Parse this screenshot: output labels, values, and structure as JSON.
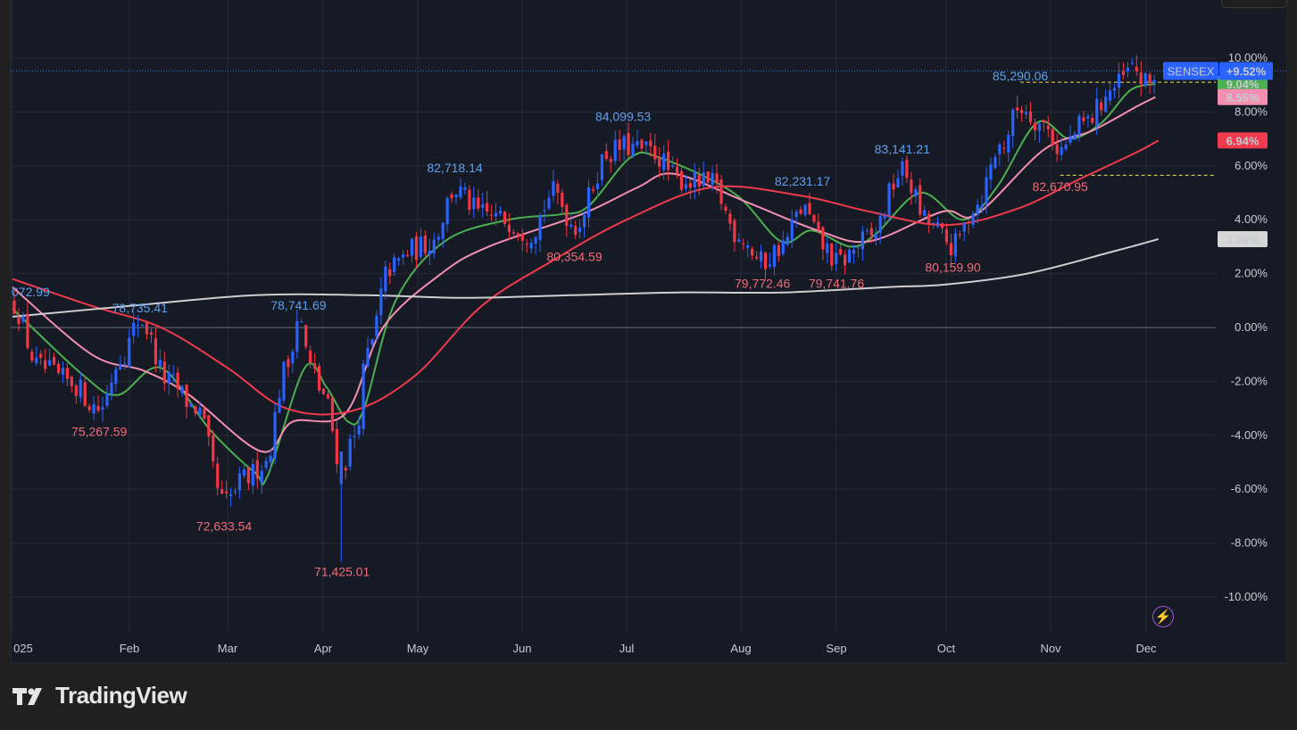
{
  "brand": {
    "name": "TradingView"
  },
  "symbol": {
    "name": "SENSEX",
    "change": "+9.52%"
  },
  "colors": {
    "background": "#161a25",
    "frame": "#202020",
    "grid": "#262b36",
    "up": "#2962ff",
    "down": "#f23645",
    "ma_green": "#4caf50",
    "ma_pink": "#f48fb1",
    "ma_red": "#ef3b4d",
    "ma_gray": "#cfcfcf",
    "hi_label": "#5ea0f0",
    "lo_label": "#f06c78"
  },
  "chart_data": {
    "type": "candlestick",
    "y_unit": "%",
    "ylim": [
      -11.5,
      11
    ],
    "y_ticks": [
      "10.00%",
      "8.00%",
      "6.00%",
      "4.00%",
      "2.00%",
      "0.00%",
      "-2.00%",
      "-4.00%",
      "-6.00%",
      "-8.00%",
      "-10.00%"
    ],
    "x_ticks": [
      "2025",
      "Feb",
      "Mar",
      "Apr",
      "May",
      "Jun",
      "Jul",
      "Aug",
      "Sep",
      "Oct",
      "Nov",
      "Dec"
    ],
    "price_anchors": [
      {
        "date": "Jan 01",
        "pct": 0.9
      },
      {
        "date": "Jan 08",
        "pct": -1.5
      },
      {
        "date": "Jan 16",
        "pct": -2.0
      },
      {
        "date": "Jan 24",
        "pct": -3.0
      },
      {
        "date": "Jan 30",
        "pct": -1.0
      },
      {
        "date": "Feb 04",
        "pct": 0.3
      },
      {
        "date": "Feb 12",
        "pct": -2.0
      },
      {
        "date": "Feb 20",
        "pct": -3.0
      },
      {
        "date": "Feb 28",
        "pct": -6.5
      },
      {
        "date": "Mar 07",
        "pct": -5.6
      },
      {
        "date": "Mar 13",
        "pct": -5.0
      },
      {
        "date": "Mar 20",
        "pct": -1.5
      },
      {
        "date": "Mar 24",
        "pct": 0.4
      },
      {
        "date": "Mar 28",
        "pct": -1.5
      },
      {
        "date": "Apr 01",
        "pct": -2.5
      },
      {
        "date": "Apr 07",
        "pct": -5.2
      },
      {
        "date": "Apr 11",
        "pct": -4.0
      },
      {
        "date": "Apr 15",
        "pct": -1.0
      },
      {
        "date": "Apr 22",
        "pct": 2.2
      },
      {
        "date": "Apr 30",
        "pct": 2.9
      },
      {
        "date": "May 05",
        "pct": 3.2
      },
      {
        "date": "May 12",
        "pct": 5.1
      },
      {
        "date": "May 20",
        "pct": 4.2
      },
      {
        "date": "May 27",
        "pct": 4.0
      },
      {
        "date": "Jun 03",
        "pct": 3.5
      },
      {
        "date": "Jun 10",
        "pct": 5.0
      },
      {
        "date": "Jun 16",
        "pct": 3.8
      },
      {
        "date": "Jun 26",
        "pct": 6.5
      },
      {
        "date": "Jun 30",
        "pct": 6.7
      },
      {
        "date": "Jul 08",
        "pct": 6.5
      },
      {
        "date": "Jul 15",
        "pct": 5.5
      },
      {
        "date": "Jul 24",
        "pct": 5.3
      },
      {
        "date": "Jul 31",
        "pct": 3.5
      },
      {
        "date": "Aug 08",
        "pct": 2.4
      },
      {
        "date": "Aug 14",
        "pct": 3.0
      },
      {
        "date": "Aug 21",
        "pct": 4.4
      },
      {
        "date": "Aug 28",
        "pct": 3.0
      },
      {
        "date": "Sep 01",
        "pct": 2.4
      },
      {
        "date": "Sep 10",
        "pct": 3.3
      },
      {
        "date": "Sep 19",
        "pct": 5.8
      },
      {
        "date": "Sep 26",
        "pct": 3.9
      },
      {
        "date": "Oct 03",
        "pct": 3.0
      },
      {
        "date": "Oct 10",
        "pct": 4.6
      },
      {
        "date": "Oct 17",
        "pct": 6.7
      },
      {
        "date": "Oct 23",
        "pct": 8.2
      },
      {
        "date": "Oct 30",
        "pct": 7.5
      },
      {
        "date": "Nov 04",
        "pct": 6.6
      },
      {
        "date": "Nov 12",
        "pct": 7.6
      },
      {
        "date": "Nov 20",
        "pct": 8.8
      },
      {
        "date": "Nov 27",
        "pct": 9.6
      },
      {
        "date": "Dec 01",
        "pct": 9.0
      },
      {
        "date": "Dec 05",
        "pct": 9.52
      }
    ],
    "moving_averages": [
      {
        "color": "green",
        "last": "9.04%",
        "points": [
          [
            "Jan 01",
            0.7
          ],
          [
            "Jan 20",
            -1.8
          ],
          [
            "Jan 29",
            -2.5
          ],
          [
            "Feb 10",
            -1.5
          ],
          [
            "Feb 24",
            -3.8
          ],
          [
            "Mar 10",
            -5.4
          ],
          [
            "Mar 14",
            -5.5
          ],
          [
            "Mar 26",
            -1.5
          ],
          [
            "Apr 02",
            -2.2
          ],
          [
            "Apr 09",
            -3.5
          ],
          [
            "Apr 14",
            -3.0
          ],
          [
            "Apr 24",
            1.0
          ],
          [
            "May 09",
            3.2
          ],
          [
            "May 28",
            4.0
          ],
          [
            "Jun 12",
            4.2
          ],
          [
            "Jun 20",
            4.5
          ],
          [
            "Jul 02",
            6.3
          ],
          [
            "Jul 10",
            6.3
          ],
          [
            "Jul 30",
            5.0
          ],
          [
            "Aug 14",
            3.2
          ],
          [
            "Aug 24",
            3.6
          ],
          [
            "Sep 05",
            3.0
          ],
          [
            "Sep 12",
            3.5
          ],
          [
            "Sep 24",
            5.0
          ],
          [
            "Oct 06",
            4.0
          ],
          [
            "Oct 16",
            5.2
          ],
          [
            "Oct 28",
            7.6
          ],
          [
            "Nov 07",
            7.0
          ],
          [
            "Nov 17",
            7.6
          ],
          [
            "Nov 26",
            8.8
          ],
          [
            "Dec 04",
            9.04
          ]
        ]
      },
      {
        "color": "pink",
        "last": "8.55%",
        "points": [
          [
            "Jan 01",
            1.5
          ],
          [
            "Jan 22",
            -1.0
          ],
          [
            "Feb 05",
            -1.6
          ],
          [
            "Feb 18",
            -2.5
          ],
          [
            "Mar 12",
            -4.6
          ],
          [
            "Mar 22",
            -3.5
          ],
          [
            "Apr 08",
            -3.2
          ],
          [
            "Apr 20",
            0.0
          ],
          [
            "May 08",
            2.0
          ],
          [
            "May 22",
            3.0
          ],
          [
            "Jun 18",
            4.2
          ],
          [
            "Jul 04",
            5.2
          ],
          [
            "Jul 14",
            5.7
          ],
          [
            "Aug 04",
            4.6
          ],
          [
            "Aug 26",
            3.6
          ],
          [
            "Sep 10",
            3.2
          ],
          [
            "Sep 30",
            4.3
          ],
          [
            "Oct 10",
            4.2
          ],
          [
            "Oct 30",
            6.6
          ],
          [
            "Nov 14",
            7.3
          ],
          [
            "Nov 28",
            8.2
          ],
          [
            "Dec 04",
            8.55
          ]
        ]
      },
      {
        "color": "red",
        "last": "6.94%",
        "points": [
          [
            "Jan 01",
            1.8
          ],
          [
            "Jan 22",
            0.8
          ],
          [
            "Feb 10",
            0.0
          ],
          [
            "Mar 01",
            -1.5
          ],
          [
            "Mar 20",
            -3.0
          ],
          [
            "Apr 10",
            -3.1
          ],
          [
            "Apr 30",
            -1.8
          ],
          [
            "May 20",
            0.8
          ],
          [
            "Jun 10",
            2.5
          ],
          [
            "Jul 01",
            4.0
          ],
          [
            "Jul 24",
            5.2
          ],
          [
            "Aug 20",
            4.9
          ],
          [
            "Sep 10",
            4.3
          ],
          [
            "Oct 01",
            3.8
          ],
          [
            "Oct 22",
            4.4
          ],
          [
            "Nov 10",
            5.5
          ],
          [
            "Nov 28",
            6.5
          ],
          [
            "Dec 05",
            6.94
          ]
        ]
      },
      {
        "color": "gray",
        "last": "3.28%",
        "points": [
          [
            "Jan 01",
            0.4
          ],
          [
            "Feb 01",
            0.8
          ],
          [
            "Mar 10",
            1.2
          ],
          [
            "Apr 15",
            1.2
          ],
          [
            "May 15",
            1.1
          ],
          [
            "Jun 15",
            1.2
          ],
          [
            "Jul 15",
            1.3
          ],
          [
            "Aug 15",
            1.3
          ],
          [
            "Sep 15",
            1.5
          ],
          [
            "Oct 01",
            1.6
          ],
          [
            "Oct 25",
            2.0
          ],
          [
            "Nov 20",
            2.8
          ],
          [
            "Dec 05",
            3.28
          ]
        ]
      }
    ],
    "annotations": [
      {
        "text": "072.99",
        "date": "Jan 01",
        "pct": 0.9,
        "kind": "high"
      },
      {
        "text": "78,735.41",
        "date": "Feb 04",
        "pct": 0.3,
        "kind": "high"
      },
      {
        "text": "75,267.59",
        "date": "Jan 24",
        "pct": -3.5,
        "kind": "low"
      },
      {
        "text": "72,633.54",
        "date": "Feb 28",
        "pct": -7.0,
        "kind": "low"
      },
      {
        "text": "78,741.69",
        "date": "Mar 24",
        "pct": 0.4,
        "kind": "high"
      },
      {
        "text": "71,425.01",
        "date": "Apr 07",
        "pct": -8.7,
        "kind": "low"
      },
      {
        "text": "82,718.14",
        "date": "May 12",
        "pct": 5.5,
        "kind": "high"
      },
      {
        "text": "80,354.59",
        "date": "Jun 16",
        "pct": 3.0,
        "kind": "low"
      },
      {
        "text": "84,099.53",
        "date": "Jun 30",
        "pct": 7.4,
        "kind": "high"
      },
      {
        "text": "82,231.17",
        "date": "Aug 21",
        "pct": 5.0,
        "kind": "high"
      },
      {
        "text": "79,772.46",
        "date": "Aug 08",
        "pct": 2.0,
        "kind": "low"
      },
      {
        "text": "79,741.76",
        "date": "Sep 01",
        "pct": 2.0,
        "kind": "low"
      },
      {
        "text": "83,141.21",
        "date": "Sep 19",
        "pct": 6.2,
        "kind": "high"
      },
      {
        "text": "80,159.90",
        "date": "Oct 03",
        "pct": 2.6,
        "kind": "low"
      },
      {
        "text": "85,290.06",
        "date": "Oct 23",
        "pct": 8.9,
        "kind": "high"
      },
      {
        "text": "82,670.95",
        "date": "Nov 04",
        "pct": 5.6,
        "kind": "low"
      }
    ],
    "reference_lines": [
      {
        "pct": 9.52,
        "style": "dotted",
        "color": "blue"
      },
      {
        "pct": 9.1,
        "style": "dashed",
        "color": "yellow",
        "from": "Oct 23"
      },
      {
        "pct": 5.65,
        "style": "dashed",
        "color": "yellow",
        "from": "Nov 04"
      },
      {
        "pct": 0.0,
        "style": "solid",
        "color": "gray"
      }
    ]
  }
}
